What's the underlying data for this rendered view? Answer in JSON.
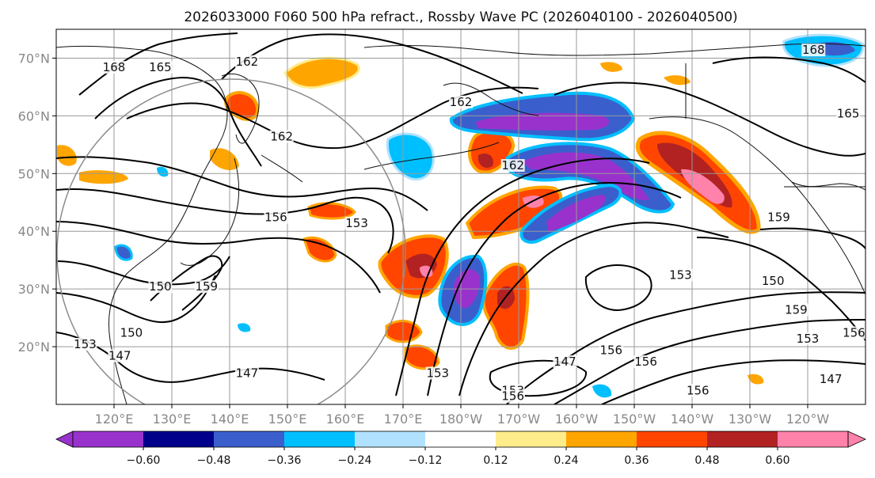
{
  "title": "2026033000 F060 500 hPa refract., Rossby Wave PC (2026040100 - 2026040500)",
  "map": {
    "lon_range": [
      110,
      250
    ],
    "lat_range": [
      10,
      75
    ],
    "lat_ticks": [
      {
        "lat": 70,
        "label": "70°N"
      },
      {
        "lat": 60,
        "label": "60°N"
      },
      {
        "lat": 50,
        "label": "50°N"
      },
      {
        "lat": 40,
        "label": "40°N"
      },
      {
        "lat": 30,
        "label": "30°N"
      },
      {
        "lat": 20,
        "label": "20°N"
      }
    ],
    "lon_ticks": [
      {
        "lon": 120,
        "label": "120°E"
      },
      {
        "lon": 130,
        "label": "130°E"
      },
      {
        "lon": 140,
        "label": "140°E"
      },
      {
        "lon": 150,
        "label": "150°E"
      },
      {
        "lon": 160,
        "label": "160°E"
      },
      {
        "lon": 170,
        "label": "170°E"
      },
      {
        "lon": 180,
        "label": "180°W"
      },
      {
        "lon": 190,
        "label": "170°W"
      },
      {
        "lon": 200,
        "label": "160°W"
      },
      {
        "lon": 210,
        "label": "150°W"
      },
      {
        "lon": 220,
        "label": "140°W"
      },
      {
        "lon": 230,
        "label": "130°W"
      },
      {
        "lon": 240,
        "label": "120°W"
      }
    ],
    "contour_labels": [
      {
        "text": "168",
        "lon": 120,
        "lat": 68
      },
      {
        "text": "165",
        "lon": 128,
        "lat": 68
      },
      {
        "text": "162",
        "lon": 143,
        "lat": 69
      },
      {
        "text": "162",
        "lon": 149,
        "lat": 56
      },
      {
        "text": "162",
        "lon": 180,
        "lat": 62
      },
      {
        "text": "162",
        "lon": 189,
        "lat": 51
      },
      {
        "text": "168",
        "lon": 241,
        "lat": 71
      },
      {
        "text": "165",
        "lon": 247,
        "lat": 60
      },
      {
        "text": "156",
        "lon": 148,
        "lat": 42
      },
      {
        "text": "153",
        "lon": 162,
        "lat": 41
      },
      {
        "text": "150",
        "lon": 128,
        "lat": 30
      },
      {
        "text": "159",
        "lon": 136,
        "lat": 30
      },
      {
        "text": "150",
        "lon": 123,
        "lat": 22
      },
      {
        "text": "153",
        "lon": 115,
        "lat": 20
      },
      {
        "text": "147",
        "lon": 121,
        "lat": 18
      },
      {
        "text": "147",
        "lon": 143,
        "lat": 15
      },
      {
        "text": "153",
        "lon": 176,
        "lat": 15
      },
      {
        "text": "153",
        "lon": 189,
        "lat": 12
      },
      {
        "text": "156",
        "lon": 189,
        "lat": 11
      },
      {
        "text": "147",
        "lon": 198,
        "lat": 17
      },
      {
        "text": "156",
        "lon": 206,
        "lat": 19
      },
      {
        "text": "156",
        "lon": 212,
        "lat": 17
      },
      {
        "text": "156",
        "lon": 221,
        "lat": 12
      },
      {
        "text": "153",
        "lon": 218,
        "lat": 32
      },
      {
        "text": "150",
        "lon": 234,
        "lat": 31
      },
      {
        "text": "159",
        "lon": 238,
        "lat": 26
      },
      {
        "text": "153",
        "lon": 240,
        "lat": 21
      },
      {
        "text": "147",
        "lon": 244,
        "lat": 14
      },
      {
        "text": "159",
        "lon": 235,
        "lat": 42
      },
      {
        "text": "156",
        "lon": 248,
        "lat": 22
      }
    ]
  },
  "colorbar": {
    "colors": [
      "#9932cc",
      "#00008b",
      "#3a5fcd",
      "#00bfff",
      "#b0e2ff",
      "#ffffff",
      "#ffec8b",
      "#ffa500",
      "#ff4500",
      "#b22222",
      "#ff82ab"
    ],
    "tick_labels": [
      "−0.60",
      "−0.48",
      "−0.36",
      "−0.24",
      "−0.12",
      "0.12",
      "0.24",
      "0.36",
      "0.48",
      "0.60"
    ]
  }
}
